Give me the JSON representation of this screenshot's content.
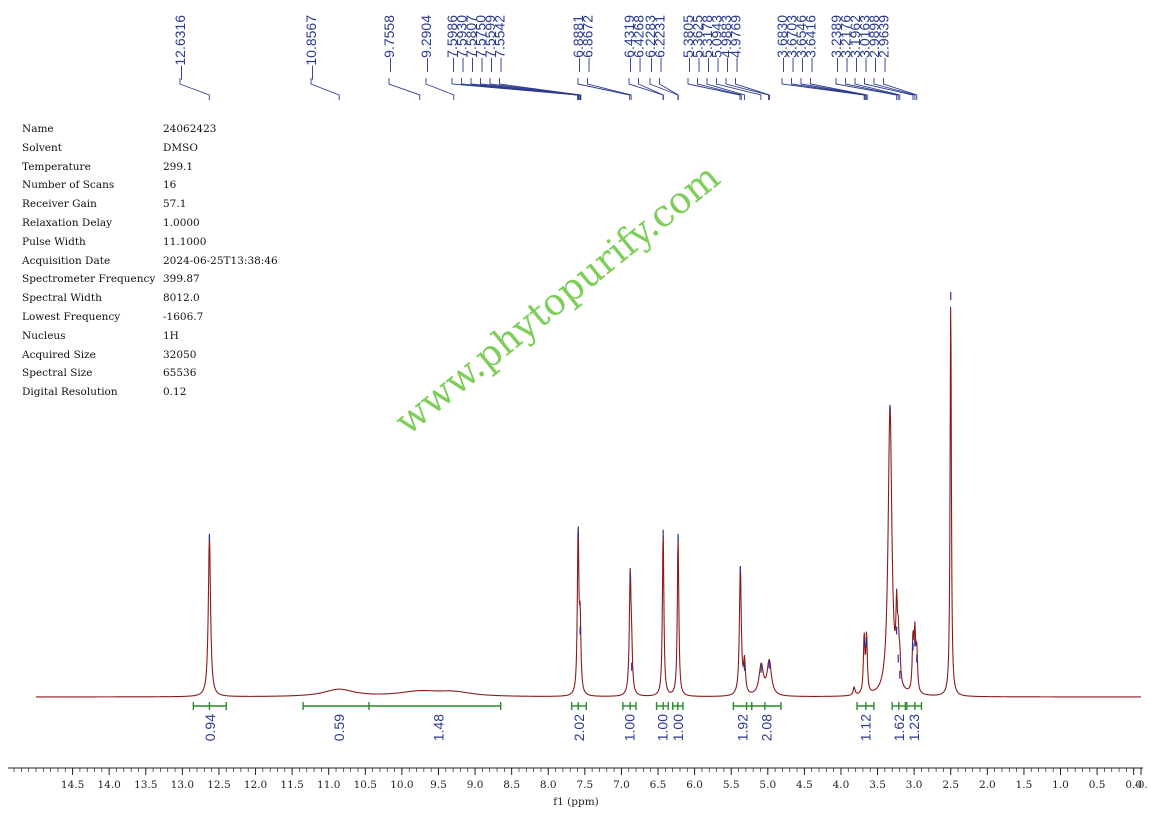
{
  "acquisition_params": [
    {
      "name": "Name",
      "value": "24062423"
    },
    {
      "name": "Solvent",
      "value": "DMSO"
    },
    {
      "name": "Temperature",
      "value": "299.1"
    },
    {
      "name": "Number of Scans",
      "value": "16"
    },
    {
      "name": "Receiver Gain",
      "value": "57.1"
    },
    {
      "name": "Relaxation Delay",
      "value": "1.0000"
    },
    {
      "name": "Pulse Width",
      "value": "11.1000"
    },
    {
      "name": "Acquisition Date",
      "value": "2024-06-25T13:38:46"
    },
    {
      "name": "Spectrometer Frequency",
      "value": "399.87"
    },
    {
      "name": "Spectral Width",
      "value": "8012.0"
    },
    {
      "name": "Lowest Frequency",
      "value": "-1606.7"
    },
    {
      "name": "Nucleus",
      "value": "1H"
    },
    {
      "name": "Acquired Size",
      "value": "32050"
    },
    {
      "name": "Spectral Size",
      "value": "65536"
    },
    {
      "name": "Digital Resolution",
      "value": "0.12"
    }
  ],
  "watermark": "www.phytopurify.com",
  "colors": {
    "spectrum": "#8b1a1a",
    "integral": "#2a8a2a",
    "peak_label": "#2b3a8c",
    "watermark": "#7fcd5a"
  },
  "chart_data": {
    "type": "line",
    "title": "",
    "xlabel": "f1 (ppm)",
    "ylabel": "",
    "x_reversed": true,
    "xlim": [
      15.0,
      -0.1
    ],
    "ylim": [
      0,
      1.05
    ],
    "x_ticks": [
      14.5,
      14.0,
      13.5,
      13.0,
      12.5,
      12.0,
      11.5,
      11.0,
      10.5,
      10.0,
      9.5,
      9.0,
      8.5,
      8.0,
      7.5,
      7.0,
      6.5,
      6.0,
      5.5,
      5.0,
      4.5,
      4.0,
      3.5,
      3.0,
      2.5,
      2.0,
      1.5,
      1.0,
      0.5,
      0.0,
      -0.1
    ],
    "x_tick_labels": [
      "14.5",
      "14.0",
      "13.5",
      "13.0",
      "12.5",
      "12.0",
      "11.5",
      "11.0",
      "10.5",
      "10.0",
      "9.5",
      "9.0",
      "8.5",
      "8.0",
      "7.5",
      "7.0",
      "6.5",
      "6.0",
      "5.5",
      "5.0",
      "4.5",
      "4.0",
      "3.5",
      "3.0",
      "2.5",
      "2.0",
      "1.5",
      "1.0",
      "0.5",
      "0.0",
      "-0."
    ],
    "peak_labels": [
      "12.6316",
      "10.8567",
      "9.7558",
      "9.2904",
      "7.5986",
      "7.5930",
      "7.5807",
      "7.5750",
      "7.5599",
      "7.5542",
      "6.8881",
      "6.8672",
      "6.4319",
      "6.4268",
      "6.2283",
      "6.2231",
      "5.3805",
      "5.3625",
      "5.3178",
      "5.0943",
      "4.9883",
      "4.9769",
      "3.6830",
      "3.6703",
      "3.6546",
      "3.6416",
      "3.2389",
      "3.2176",
      "3.1962",
      "3.0163",
      "2.9898",
      "2.9639"
    ],
    "peaks": [
      {
        "ppm": 12.63,
        "height": 0.4,
        "width": 0.018
      },
      {
        "ppm": 10.86,
        "height": 0.018,
        "width": 0.25
      },
      {
        "ppm": 9.76,
        "height": 0.012,
        "width": 0.35
      },
      {
        "ppm": 9.29,
        "height": 0.01,
        "width": 0.3
      },
      {
        "ppm": 7.592,
        "height": 0.41,
        "width": 0.012
      },
      {
        "ppm": 7.564,
        "height": 0.17,
        "width": 0.012
      },
      {
        "ppm": 6.88,
        "height": 0.3,
        "width": 0.014
      },
      {
        "ppm": 6.86,
        "height": 0.08,
        "width": 0.012
      },
      {
        "ppm": 6.43,
        "height": 0.41,
        "width": 0.012
      },
      {
        "ppm": 6.226,
        "height": 0.4,
        "width": 0.012
      },
      {
        "ppm": 5.375,
        "height": 0.32,
        "width": 0.015
      },
      {
        "ppm": 5.318,
        "height": 0.08,
        "width": 0.015
      },
      {
        "ppm": 5.09,
        "height": 0.075,
        "width": 0.035
      },
      {
        "ppm": 4.98,
        "height": 0.085,
        "width": 0.035
      },
      {
        "ppm": 3.683,
        "height": 0.14,
        "width": 0.012
      },
      {
        "ppm": 3.65,
        "height": 0.14,
        "width": 0.012
      },
      {
        "ppm": 3.33,
        "height": 0.72,
        "width": 0.03
      },
      {
        "ppm": 3.239,
        "height": 0.17,
        "width": 0.012
      },
      {
        "ppm": 3.217,
        "height": 0.1,
        "width": 0.012
      },
      {
        "ppm": 3.196,
        "height": 0.06,
        "width": 0.012
      },
      {
        "ppm": 3.016,
        "height": 0.13,
        "width": 0.012
      },
      {
        "ppm": 2.99,
        "height": 0.14,
        "width": 0.012
      },
      {
        "ppm": 2.964,
        "height": 0.1,
        "width": 0.012
      },
      {
        "ppm": 2.5,
        "height": 1.0,
        "width": 0.01
      },
      {
        "ppm": 3.82,
        "height": 0.02,
        "width": 0.015
      }
    ],
    "integrals": [
      {
        "from": 12.85,
        "to": 12.4,
        "value": "0.94",
        "ticks": [
          12.63
        ]
      },
      {
        "from": 11.35,
        "to": 8.65,
        "value": "0.59",
        "secondary_value": "1.48",
        "ticks": [
          10.45
        ]
      },
      {
        "from": 7.68,
        "to": 7.48,
        "value": "2.02",
        "ticks": [
          7.59
        ]
      },
      {
        "from": 6.98,
        "to": 6.8,
        "value": "1.00",
        "ticks": [
          6.88
        ]
      },
      {
        "from": 6.52,
        "to": 6.36,
        "value": "1.00",
        "ticks": [
          6.43
        ]
      },
      {
        "from": 6.3,
        "to": 6.16,
        "value": "1.00",
        "ticks": [
          6.23
        ]
      },
      {
        "from": 5.47,
        "to": 5.22,
        "value": "1.92",
        "ticks": [
          5.29
        ]
      },
      {
        "from": 5.22,
        "to": 4.82,
        "value": "2.08",
        "ticks": [
          5.04
        ]
      },
      {
        "from": 3.78,
        "to": 3.55,
        "value": "1.12",
        "ticks": [
          3.66
        ]
      },
      {
        "from": 3.3,
        "to": 3.12,
        "value": "1.62",
        "ticks": [
          3.21
        ]
      },
      {
        "from": 3.1,
        "to": 2.9,
        "value": "1.23",
        "ticks": [
          2.99
        ]
      }
    ],
    "grid": false,
    "legend": "none"
  }
}
